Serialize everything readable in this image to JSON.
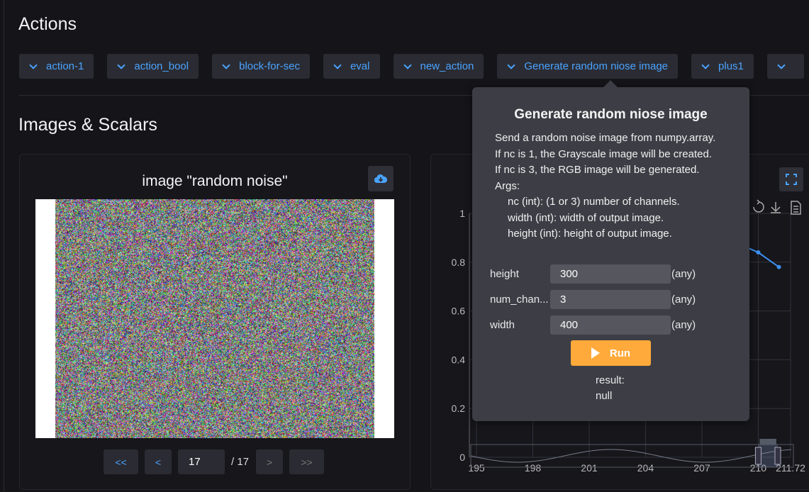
{
  "sections": {
    "actions_title": "Actions",
    "images_title": "Images & Scalars"
  },
  "actions": [
    "action-1",
    "action_bool",
    "block-for-sec",
    "eval",
    "new_action",
    "Generate random niose image",
    "plus1",
    ""
  ],
  "image_card": {
    "title": "image \"random noise\"",
    "download_icon": "cloud-download-icon",
    "pager": {
      "first": "<<",
      "prev": "<",
      "current": "17",
      "total": "/ 17",
      "next": ">",
      "last": ">>"
    }
  },
  "popover": {
    "title": "Generate random niose image",
    "description": [
      "Send a random noise image from numpy.array.",
      "If nc is 1, the Grayscale image will be created.",
      "If nc is 3, the RGB image will be generated.",
      "Args:"
    ],
    "args": [
      "nc (int): (1 or 3) number of channels.",
      "width (int): width of output image.",
      "height (int): height of output image."
    ],
    "fields": [
      {
        "label": "height",
        "value": "300",
        "type": "(any)"
      },
      {
        "label": "num_chan...",
        "value": "3",
        "type": "(any)"
      },
      {
        "label": "width",
        "value": "400",
        "type": "(any)"
      }
    ],
    "run_label": "Run",
    "result_label": "result:",
    "result_value": "null"
  },
  "colors": {
    "accent": "#4aa3ff",
    "run": "#ffaa3b",
    "line": "#3b8ff0"
  },
  "chart_data": {
    "type": "line",
    "xlim": [
      195,
      211.72
    ],
    "ylim": [
      0,
      1
    ],
    "xticks": [
      "195",
      "198",
      "201",
      "204",
      "207",
      "210",
      "211.72"
    ],
    "xtick_values": [
      195,
      198,
      201,
      204,
      207,
      210,
      211.72
    ],
    "yticks": [
      "0",
      "0.2",
      "0.4",
      "0.6",
      "0.8",
      "1"
    ],
    "ytick_values": [
      0,
      0.2,
      0.4,
      0.6,
      0.8,
      1
    ],
    "grid": true,
    "series": [
      {
        "points": [
          [
            209.1,
            0.87
          ],
          [
            210,
            0.84
          ],
          [
            211.1,
            0.78
          ]
        ]
      }
    ],
    "toolbar_icons": [
      "restore-icon",
      "save-image-icon",
      "data-view-icon"
    ],
    "datazoom": {
      "start": 210,
      "end": 211.72
    }
  }
}
